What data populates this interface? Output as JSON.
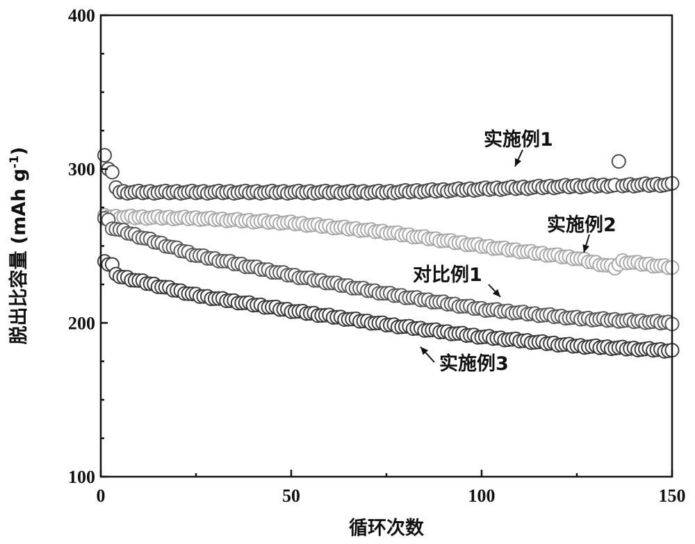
{
  "chart_data": {
    "type": "scatter",
    "xlabel": "循环次数",
    "ylabel": "脱出比容量 (mAh g",
    "ylabel_sup": "-1",
    "ylabel_end": ")",
    "xlim": [
      0,
      150
    ],
    "ylim": [
      100,
      400
    ],
    "xticks": [
      0,
      50,
      100,
      150
    ],
    "yticks": [
      100,
      200,
      300,
      400
    ],
    "xtick_labels": [
      "0",
      "50",
      "100",
      "150"
    ],
    "ytick_labels": [
      "100",
      "200",
      "300",
      "400"
    ],
    "grid": false,
    "marker": "open-circle",
    "series": [
      {
        "name": "实施例1",
        "color": "#4a4a4a",
        "start": [
          [
            1,
            309
          ],
          [
            2,
            300
          ],
          [
            3,
            298
          ],
          [
            4,
            288
          ]
        ],
        "values": [
          [
            5,
            285
          ],
          [
            25,
            285
          ],
          [
            50,
            285
          ],
          [
            75,
            285
          ],
          [
            100,
            287
          ],
          [
            125,
            289
          ],
          [
            150,
            290
          ]
        ],
        "outliers": [
          [
            136,
            305
          ]
        ]
      },
      {
        "name": "实施例2",
        "color": "#a9a9a9",
        "start": [
          [
            1,
            270
          ],
          [
            2,
            269
          ]
        ],
        "values": [
          [
            3,
            269
          ],
          [
            25,
            268
          ],
          [
            50,
            265
          ],
          [
            75,
            259
          ],
          [
            100,
            250
          ],
          [
            125,
            242
          ],
          [
            135,
            236
          ],
          [
            137,
            240
          ],
          [
            150,
            236
          ]
        ],
        "outliers": []
      },
      {
        "name": "对比例1",
        "color": "#5a5a5a",
        "start": [
          [
            1,
            268
          ],
          [
            2,
            267
          ]
        ],
        "values": [
          [
            3,
            262
          ],
          [
            25,
            244
          ],
          [
            50,
            231
          ],
          [
            75,
            219
          ],
          [
            100,
            209
          ],
          [
            125,
            203
          ],
          [
            150,
            200
          ]
        ],
        "outliers": []
      },
      {
        "name": "实施例3",
        "color": "#3a3a3a",
        "start": [
          [
            1,
            240
          ],
          [
            2,
            238
          ],
          [
            3,
            238
          ]
        ],
        "values": [
          [
            4,
            231
          ],
          [
            25,
            218
          ],
          [
            50,
            208
          ],
          [
            75,
            199
          ],
          [
            100,
            191
          ],
          [
            125,
            185
          ],
          [
            150,
            182
          ]
        ],
        "outliers": []
      }
    ],
    "annotations": [
      {
        "text": "实施例1",
        "series": "实施例1"
      },
      {
        "text": "实施例2",
        "series": "实施例2"
      },
      {
        "text": "对比例1",
        "series": "对比例1"
      },
      {
        "text": "实施例3",
        "series": "实施例3"
      }
    ]
  }
}
